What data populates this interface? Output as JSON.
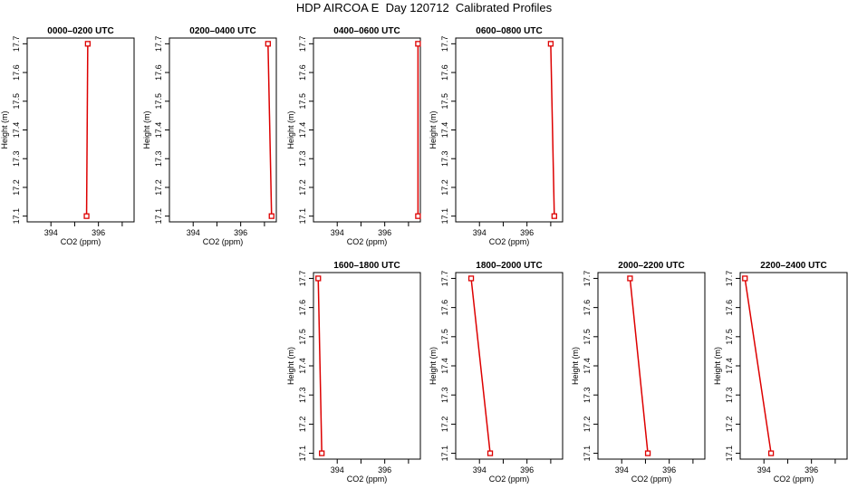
{
  "title": "HDP AIRCOA E  Day 120712  Calibrated Profiles",
  "colors": {
    "series": "#dd0000",
    "axis": "#000000"
  },
  "chart_data": [
    {
      "type": "line",
      "title": "0000–0200 UTC",
      "xlabel": "CO2 (ppm)",
      "ylabel": "Height (m)",
      "xlim": [
        393,
        397.5
      ],
      "ylim": [
        17.08,
        17.72
      ],
      "xticks": [
        394,
        396
      ],
      "yticks": [
        17.1,
        17.2,
        17.3,
        17.4,
        17.5,
        17.6,
        17.7
      ],
      "x": [
        395.5,
        395.55
      ],
      "y": [
        17.1,
        17.7
      ]
    },
    {
      "type": "line",
      "title": "0200–0400 UTC",
      "xlabel": "CO2 (ppm)",
      "ylabel": "Height (m)",
      "xlim": [
        393,
        397.5
      ],
      "ylim": [
        17.08,
        17.72
      ],
      "xticks": [
        394,
        396
      ],
      "yticks": [
        17.1,
        17.2,
        17.3,
        17.4,
        17.5,
        17.6,
        17.7
      ],
      "x": [
        397.3,
        397.15
      ],
      "y": [
        17.1,
        17.7
      ]
    },
    {
      "type": "line",
      "title": "0400–0600 UTC",
      "xlabel": "CO2 (ppm)",
      "ylabel": "Height (m)",
      "xlim": [
        393,
        397.5
      ],
      "ylim": [
        17.08,
        17.72
      ],
      "xticks": [
        394,
        396
      ],
      "yticks": [
        17.1,
        17.2,
        17.3,
        17.4,
        17.5,
        17.6,
        17.7
      ],
      "x": [
        397.4,
        397.4
      ],
      "y": [
        17.1,
        17.7
      ]
    },
    {
      "type": "line",
      "title": "0600–0800 UTC",
      "xlabel": "CO2 (ppm)",
      "ylabel": "Height (m)",
      "xlim": [
        393,
        397.5
      ],
      "ylim": [
        17.08,
        17.72
      ],
      "xticks": [
        394,
        396
      ],
      "yticks": [
        17.1,
        17.2,
        17.3,
        17.4,
        17.5,
        17.6,
        17.7
      ],
      "x": [
        397.15,
        397.0
      ],
      "y": [
        17.1,
        17.7
      ]
    },
    {
      "type": "line",
      "title": "1600–1800 UTC",
      "xlabel": "CO2 (ppm)",
      "ylabel": "Height (m)",
      "xlim": [
        393,
        397.5
      ],
      "ylim": [
        17.08,
        17.72
      ],
      "xticks": [
        394,
        396
      ],
      "yticks": [
        17.1,
        17.2,
        17.3,
        17.4,
        17.5,
        17.6,
        17.7
      ],
      "x": [
        393.35,
        393.2
      ],
      "y": [
        17.1,
        17.7
      ]
    },
    {
      "type": "line",
      "title": "1800–2000 UTC",
      "xlabel": "CO2 (ppm)",
      "ylabel": "Height (m)",
      "xlim": [
        393,
        397.5
      ],
      "ylim": [
        17.08,
        17.72
      ],
      "xticks": [
        394,
        396
      ],
      "yticks": [
        17.1,
        17.2,
        17.3,
        17.4,
        17.5,
        17.6,
        17.7
      ],
      "x": [
        394.45,
        393.65
      ],
      "y": [
        17.1,
        17.7
      ]
    },
    {
      "type": "line",
      "title": "2000–2200 UTC",
      "xlabel": "CO2 (ppm)",
      "ylabel": "Height (m)",
      "xlim": [
        393,
        397.5
      ],
      "ylim": [
        17.08,
        17.72
      ],
      "xticks": [
        394,
        396
      ],
      "yticks": [
        17.1,
        17.2,
        17.3,
        17.4,
        17.5,
        17.6,
        17.7
      ],
      "x": [
        395.1,
        394.35
      ],
      "y": [
        17.1,
        17.7
      ]
    },
    {
      "type": "line",
      "title": "2200–2400 UTC",
      "xlabel": "CO2 (ppm)",
      "ylabel": "Height (m)",
      "xlim": [
        393,
        397.5
      ],
      "ylim": [
        17.08,
        17.72
      ],
      "xticks": [
        394,
        396
      ],
      "yticks": [
        17.1,
        17.2,
        17.3,
        17.4,
        17.5,
        17.6,
        17.7
      ],
      "x": [
        394.3,
        393.2
      ],
      "y": [
        17.1,
        17.7
      ]
    }
  ]
}
